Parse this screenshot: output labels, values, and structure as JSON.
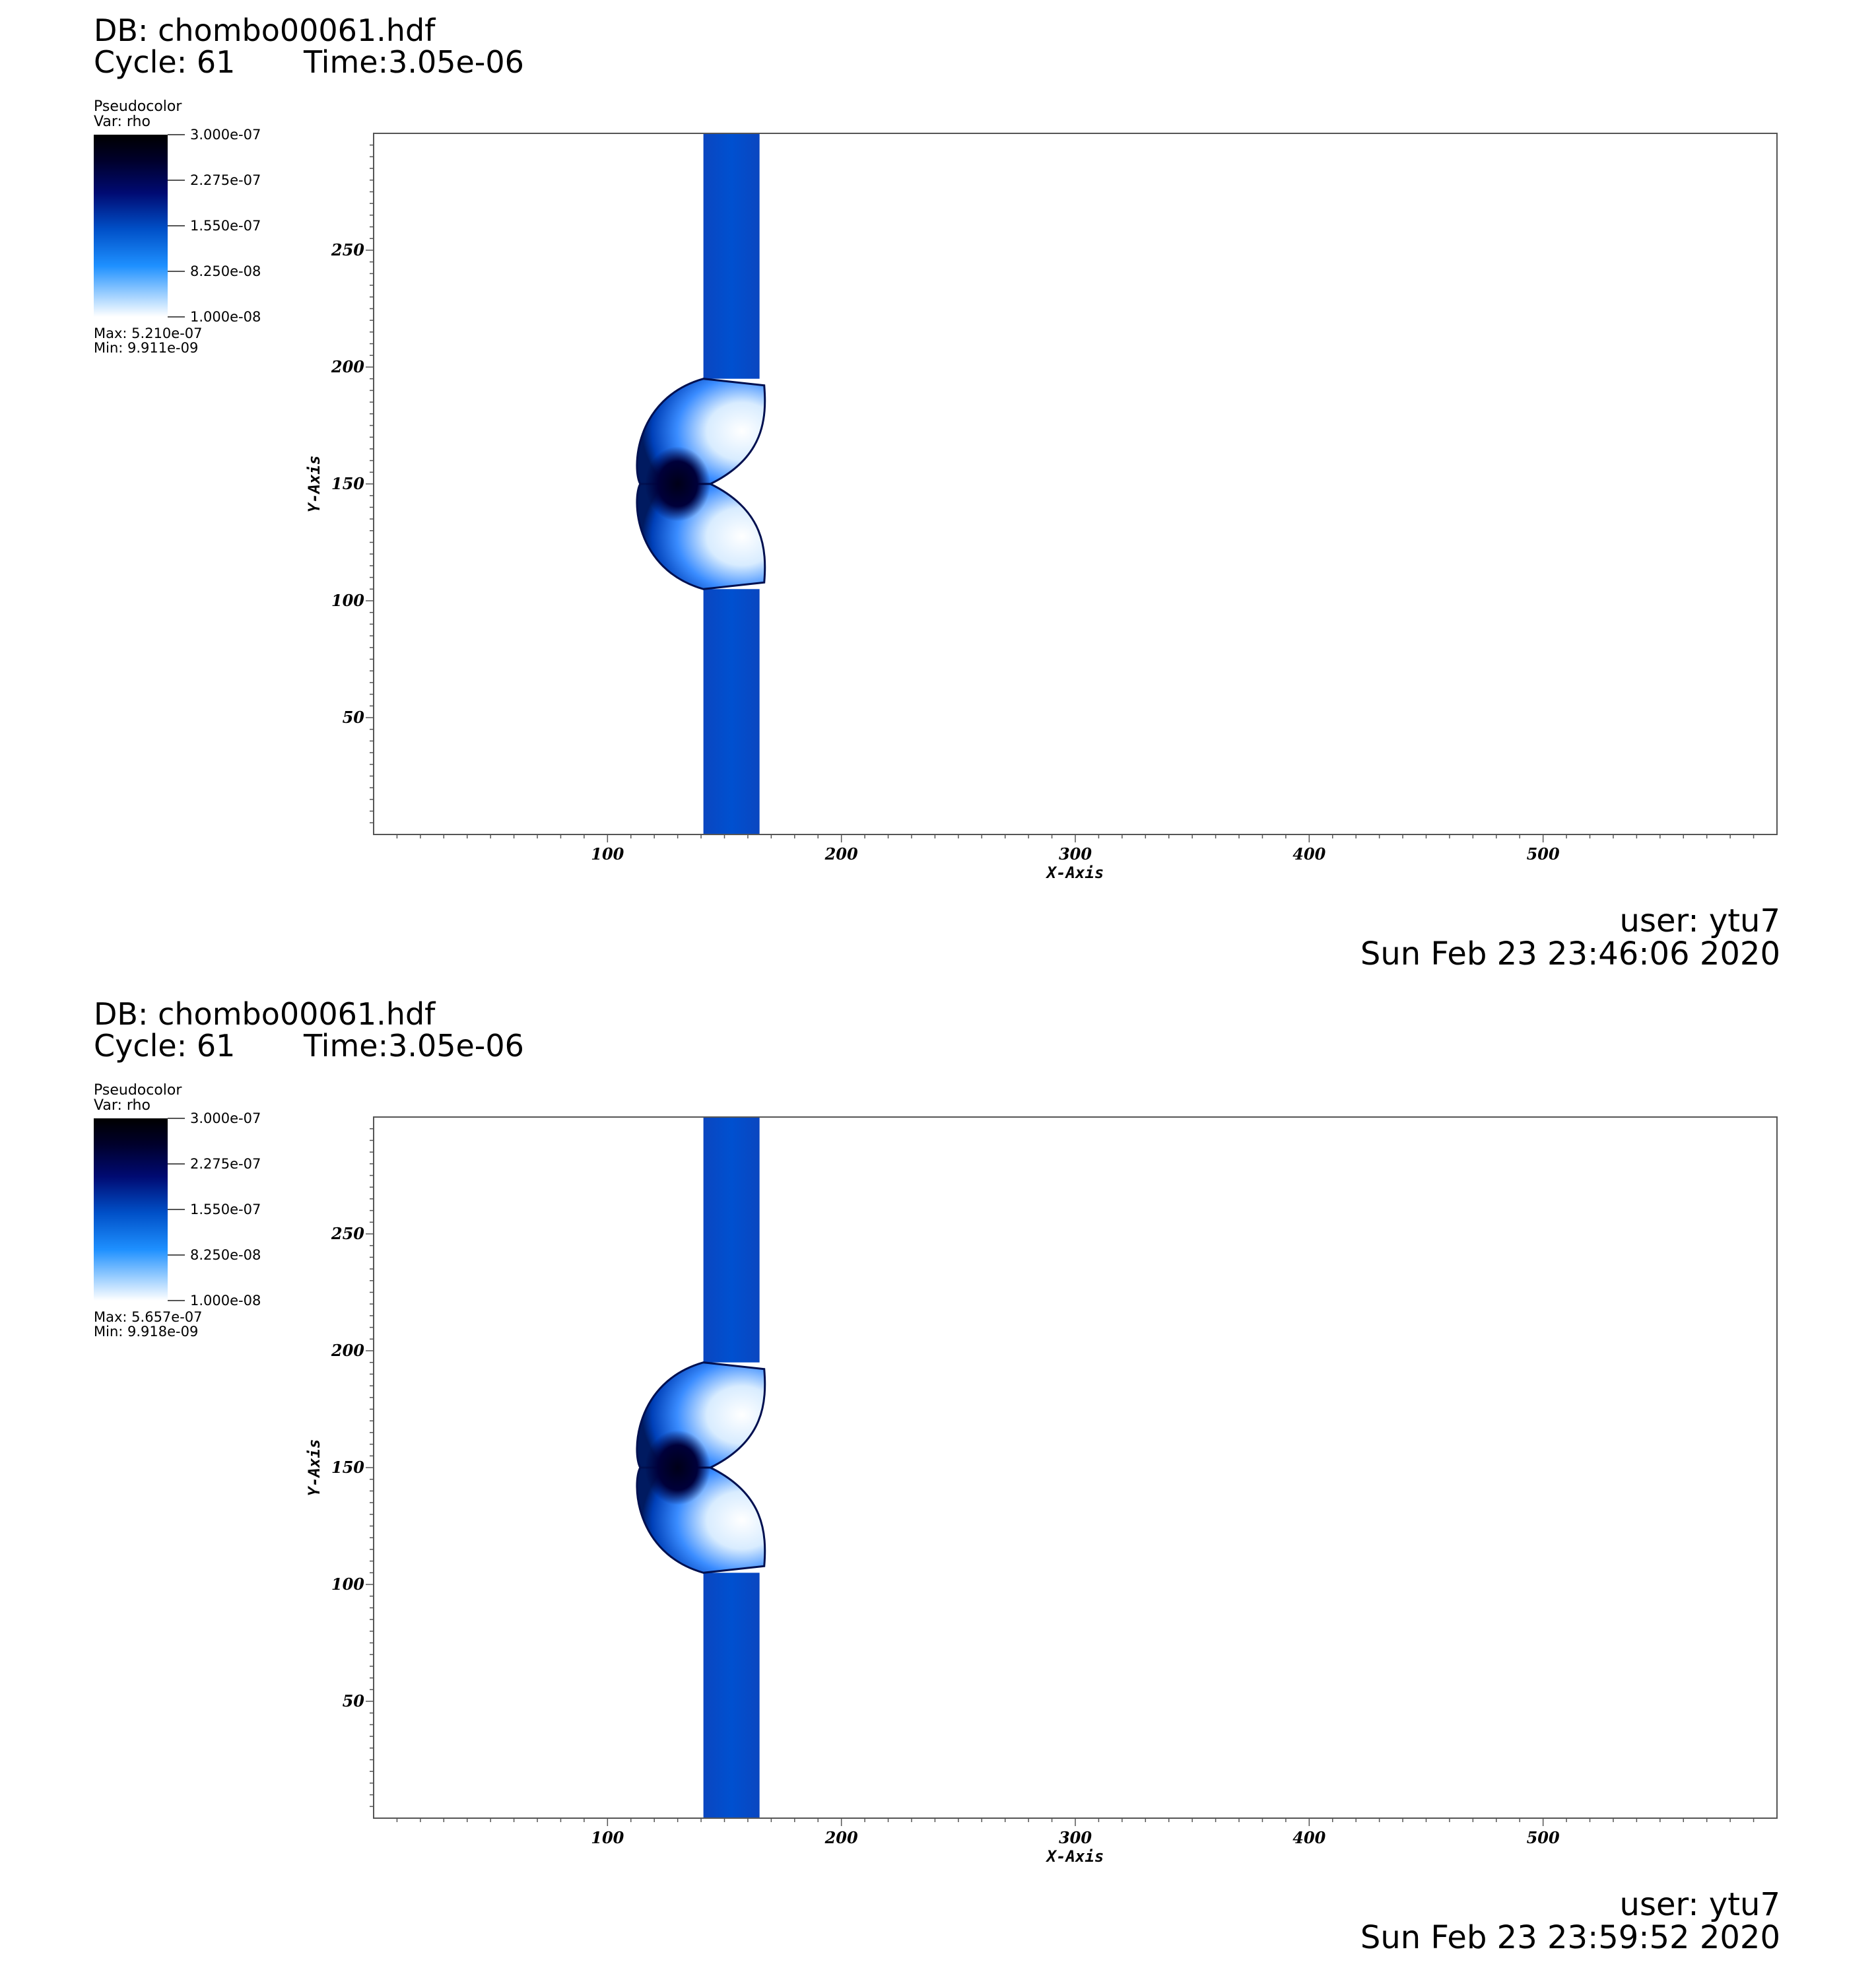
{
  "panels": [
    {
      "db": "DB: chombo00061.hdf",
      "cycle": "Cycle: 61",
      "time": "Time:3.05e-06",
      "legend": {
        "title": "Pseudocolor",
        "var": "Var: rho",
        "labels": [
          "3.000e-07",
          "2.275e-07",
          "1.550e-07",
          "8.250e-08",
          "1.000e-08"
        ],
        "max": "Max:  5.210e-07",
        "min": "Min:  9.911e-09"
      },
      "user": "user: ytu7",
      "date": "Sun Feb 23 23:46:06 2020"
    },
    {
      "db": "DB: chombo00061.hdf",
      "cycle": "Cycle: 61",
      "time": "Time:3.05e-06",
      "legend": {
        "title": "Pseudocolor",
        "var": "Var: rho",
        "labels": [
          "3.000e-07",
          "2.275e-07",
          "1.550e-07",
          "8.250e-08",
          "1.000e-08"
        ],
        "max": "Max:  5.657e-07",
        "min": "Min:  9.918e-09"
      },
      "user": "user: ytu7",
      "date": "Sun Feb 23 23:59:52 2020"
    }
  ],
  "chart_data": [
    {
      "type": "heatmap",
      "variable": "rho",
      "xlabel": "X-Axis",
      "ylabel": "Y-Axis",
      "xlim": [
        0,
        600
      ],
      "ylim": [
        0,
        300
      ],
      "xticks": [
        100,
        200,
        300,
        400,
        500
      ],
      "yticks": [
        50,
        100,
        150,
        200,
        250
      ],
      "colorbar": {
        "min": 1e-08,
        "max": 3e-07,
        "ticks": [
          3e-07,
          2.275e-07,
          1.55e-07,
          8.25e-08,
          1e-08
        ]
      },
      "data_max": 5.21e-07,
      "data_min": 9.911e-09,
      "features": {
        "slab_x": [
          141,
          165
        ],
        "slab_rho": 1.4e-07,
        "bow_center": [
          128,
          150
        ],
        "bow_y_range": [
          105,
          195
        ]
      },
      "colors": {
        "slab": "#0050d0",
        "dense": "#000018",
        "light": "#ffffff"
      }
    },
    {
      "type": "heatmap",
      "variable": "rho",
      "xlabel": "X-Axis",
      "ylabel": "Y-Axis",
      "xlim": [
        0,
        600
      ],
      "ylim": [
        0,
        300
      ],
      "xticks": [
        100,
        200,
        300,
        400,
        500
      ],
      "yticks": [
        50,
        100,
        150,
        200,
        250
      ],
      "colorbar": {
        "min": 1e-08,
        "max": 3e-07,
        "ticks": [
          3e-07,
          2.275e-07,
          1.55e-07,
          8.25e-08,
          1e-08
        ]
      },
      "data_max": 5.657e-07,
      "data_min": 9.918e-09,
      "features": {
        "slab_x": [
          141,
          165
        ],
        "slab_rho": 1.4e-07,
        "bow_center": [
          128,
          150
        ],
        "bow_y_range": [
          105,
          195
        ]
      },
      "colors": {
        "slab": "#0050d0",
        "dense": "#000018",
        "light": "#ffffff"
      }
    }
  ]
}
